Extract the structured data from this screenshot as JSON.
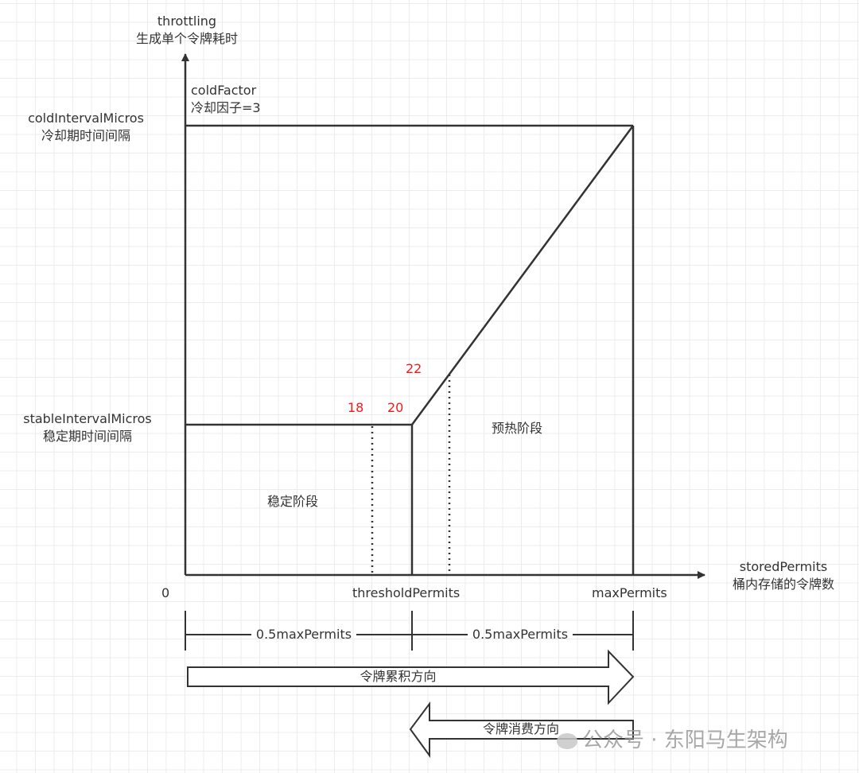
{
  "y_axis": {
    "label_en": "throttling",
    "label_zh": "生成单个令牌耗时"
  },
  "x_axis": {
    "label_en": "storedPermits",
    "label_zh": "桶内存储的令牌数"
  },
  "origin": "0",
  "cold_interval": {
    "en": "coldIntervalMicros",
    "zh": "冷却期时间间隔"
  },
  "stable_interval": {
    "en": "stableIntervalMicros",
    "zh": "稳定期时间间隔"
  },
  "cold_factor": {
    "en": "coldFactor",
    "zh": "冷却因子=3"
  },
  "x_ticks": {
    "threshold": "thresholdPermits",
    "max": "maxPermits"
  },
  "markers": [
    "18",
    "20",
    "22"
  ],
  "regions": {
    "stable": "稳定阶段",
    "warmup": "预热阶段"
  },
  "dimension": {
    "left": "0.5maxPermits",
    "right": "0.5maxPermits"
  },
  "arrows": {
    "accumulate": "令牌累积方向",
    "consume": "令牌消费方向"
  },
  "watermark": "公众号 · 东阳马生架构",
  "colors": {
    "line": "#333333",
    "marker": "#f01b1b"
  }
}
